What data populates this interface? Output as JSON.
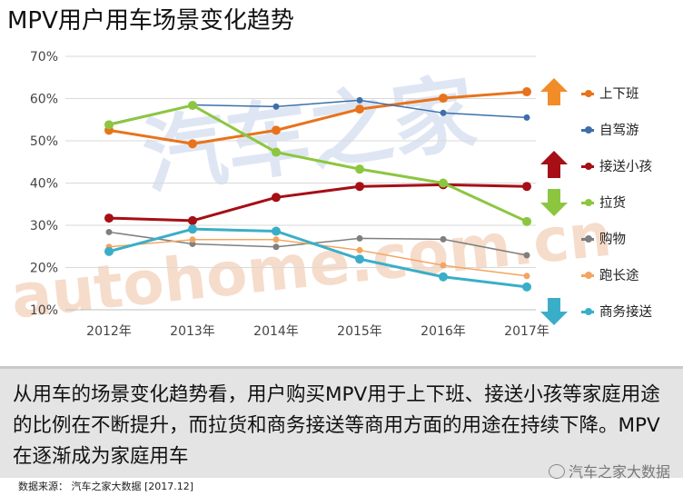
{
  "title": "MPV用户用车场景变化趋势",
  "chart_data": {
    "type": "line",
    "categories": [
      "2012年",
      "2013年",
      "2014年",
      "2015年",
      "2016年",
      "2017年"
    ],
    "y_ticks": [
      "10%",
      "20%",
      "30%",
      "40%",
      "50%",
      "60%",
      "70%"
    ],
    "ylim": [
      10,
      70
    ],
    "series": [
      {
        "name": "上下班",
        "color": "#e8731c",
        "values": [
          52.5,
          49.3,
          52.5,
          57.5,
          60.1,
          61.6
        ],
        "width": 3
      },
      {
        "name": "自驾游",
        "color": "#3d6faa",
        "values": [
          54,
          58.5,
          58.1,
          59.6,
          56.6,
          55.5
        ],
        "width": 1.5
      },
      {
        "name": "接送小孩",
        "color": "#a50f15",
        "values": [
          31.7,
          31.1,
          36.6,
          39.2,
          39.6,
          39.2
        ],
        "width": 3
      },
      {
        "name": "拉货",
        "color": "#8cc63f",
        "values": [
          53.8,
          58.4,
          47.3,
          43.3,
          40,
          30.9
        ],
        "width": 3
      },
      {
        "name": "购物",
        "color": "#7f7f7f",
        "values": [
          28.4,
          25.6,
          24.9,
          26.9,
          26.7,
          22.9
        ],
        "width": 1.5
      },
      {
        "name": "跑长途",
        "color": "#f4a460",
        "values": [
          24.9,
          26.6,
          26.6,
          24.1,
          20.5,
          18
        ],
        "width": 1.5
      },
      {
        "name": "商务接送",
        "color": "#3aaec8",
        "values": [
          23.8,
          29.1,
          28.6,
          22,
          17.8,
          15.4
        ],
        "width": 3
      }
    ],
    "arrows": [
      {
        "series": "上下班",
        "direction": "up",
        "color": "#f28c28"
      },
      {
        "series": "接送小孩",
        "direction": "up",
        "color": "#a50f15"
      },
      {
        "series": "拉货",
        "direction": "down",
        "color": "#8cc63f"
      },
      {
        "series": "商务接送",
        "direction": "down",
        "color": "#3aaec8"
      }
    ],
    "watermark": "汽车之家",
    "watermark2": "autohome.com.cn"
  },
  "caption": "从用车的场景变化趋势看，用户购买MPV用于上下班、接送小孩等家庭用途的比例在不断提升，而拉货和商务接送等商用方面的用途在持续下降。MPV在逐渐成为家庭用车",
  "source": "数据来源： 汽车之家大数据 [2017.12]",
  "brand": "汽车之家大数据"
}
